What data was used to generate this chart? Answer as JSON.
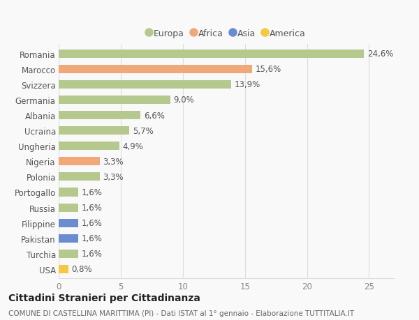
{
  "countries": [
    "Romania",
    "Marocco",
    "Svizzera",
    "Germania",
    "Albania",
    "Ucraina",
    "Ungheria",
    "Nigeria",
    "Polonia",
    "Portogallo",
    "Russia",
    "Filippine",
    "Pakistan",
    "Turchia",
    "USA"
  ],
  "values": [
    24.6,
    15.6,
    13.9,
    9.0,
    6.6,
    5.7,
    4.9,
    3.3,
    3.3,
    1.6,
    1.6,
    1.6,
    1.6,
    1.6,
    0.8
  ],
  "labels": [
    "24,6%",
    "15,6%",
    "13,9%",
    "9,0%",
    "6,6%",
    "5,7%",
    "4,9%",
    "3,3%",
    "3,3%",
    "1,6%",
    "1,6%",
    "1,6%",
    "1,6%",
    "1,6%",
    "0,8%"
  ],
  "continents": [
    "Europa",
    "Africa",
    "Europa",
    "Europa",
    "Europa",
    "Europa",
    "Europa",
    "Africa",
    "Europa",
    "Europa",
    "Europa",
    "Asia",
    "Asia",
    "Europa",
    "America"
  ],
  "continent_colors": {
    "Europa": "#b5c98e",
    "Africa": "#f0a878",
    "Asia": "#6b8cce",
    "America": "#f5c842"
  },
  "title": "Cittadini Stranieri per Cittadinanza",
  "subtitle": "COMUNE DI CASTELLINA MARITTIMA (PI) - Dati ISTAT al 1° gennaio - Elaborazione TUTTITALIA.IT",
  "xlim": [
    0,
    27
  ],
  "background_color": "#f9f9f9",
  "bar_height": 0.55,
  "grid_color": "#dddddd",
  "label_fontsize": 8.5,
  "tick_fontsize": 8.5,
  "title_fontsize": 10,
  "subtitle_fontsize": 7.5,
  "legend_order": [
    "Europa",
    "Africa",
    "Asia",
    "America"
  ]
}
